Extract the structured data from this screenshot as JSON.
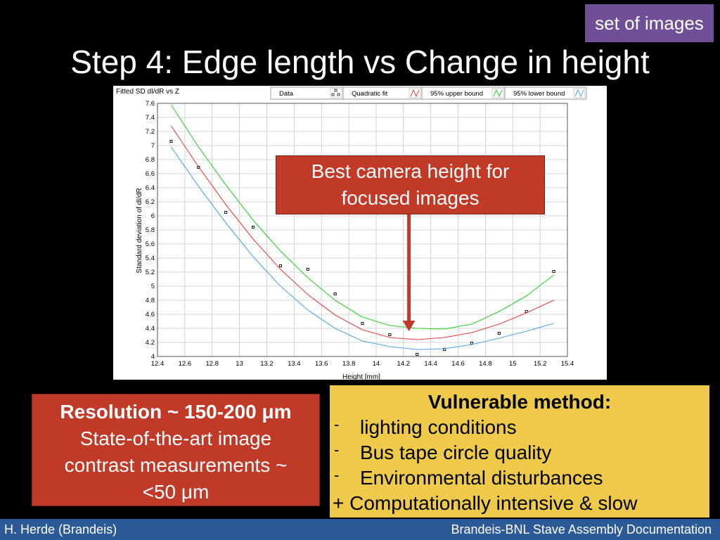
{
  "tag_label": "set of images",
  "slide_title": "Step 4: Edge length vs Change in height",
  "chart_data": {
    "type": "scatter",
    "title": "Fitted SD dI/dR vs Z",
    "xlabel": "Height [mm]",
    "ylabel": "Standard deviation of dI/dR",
    "xlim": [
      12.4,
      15.4
    ],
    "ylim": [
      4,
      7.6
    ],
    "x_ticks": [
      "12.4",
      "12.6",
      "12.8",
      "13",
      "13.2",
      "13.4",
      "13.6",
      "13.8",
      "14",
      "14.2",
      "14.4",
      "14.6",
      "14.8",
      "15",
      "15.2",
      "15.4"
    ],
    "y_ticks": [
      "4",
      "4.2",
      "4.4",
      "4.6",
      "4.8",
      "5",
      "5.2",
      "5.4",
      "5.6",
      "5.8",
      "6",
      "6.2",
      "6.4",
      "6.6",
      "6.8",
      "7",
      "7.2",
      "7.4",
      "7.6"
    ],
    "grid": true,
    "legend_position": "top",
    "series": [
      {
        "name": "Data",
        "kind": "points",
        "x": [
          12.5,
          12.7,
          12.9,
          13.1,
          13.3,
          13.5,
          13.7,
          13.9,
          14.1,
          14.3,
          14.5,
          14.7,
          14.9,
          15.1,
          15.3
        ],
        "y": [
          7.06,
          6.69,
          6.05,
          5.84,
          5.29,
          5.24,
          4.89,
          4.47,
          4.31,
          4.03,
          4.1,
          4.19,
          4.33,
          4.64,
          5.21
        ],
        "color": "#000000"
      },
      {
        "name": "Quadratic fit",
        "kind": "line",
        "x": [
          12.5,
          12.7,
          12.9,
          13.1,
          13.3,
          13.5,
          13.7,
          13.9,
          14.1,
          14.3,
          14.5,
          14.7,
          14.9,
          15.1,
          15.3
        ],
        "y": [
          7.28,
          6.7,
          6.16,
          5.67,
          5.24,
          4.88,
          4.59,
          4.38,
          4.27,
          4.24,
          4.27,
          4.34,
          4.46,
          4.62,
          4.8
        ],
        "color": "#e8413c"
      },
      {
        "name": "95% upper bound",
        "kind": "line",
        "x": [
          12.5,
          12.7,
          12.9,
          13.1,
          13.3,
          13.5,
          13.7,
          13.9,
          14.1,
          14.3,
          14.5,
          14.7,
          14.9,
          15.1,
          15.3
        ],
        "y": [
          7.58,
          6.98,
          6.44,
          5.94,
          5.5,
          5.12,
          4.8,
          4.56,
          4.44,
          4.4,
          4.39,
          4.46,
          4.64,
          4.86,
          5.16
        ],
        "color": "#2bd12b"
      },
      {
        "name": "95% lower bound",
        "kind": "line",
        "x": [
          12.5,
          12.7,
          12.9,
          13.1,
          13.3,
          13.5,
          13.7,
          13.9,
          14.1,
          14.3,
          14.5,
          14.7,
          14.9,
          15.1,
          15.3
        ],
        "y": [
          6.98,
          6.42,
          5.9,
          5.42,
          5.0,
          4.66,
          4.4,
          4.22,
          4.14,
          4.1,
          4.11,
          4.17,
          4.26,
          4.36,
          4.47
        ],
        "color": "#4aa8e8"
      }
    ],
    "annotation": {
      "lines": [
        "Best camera height for",
        "focused images"
      ],
      "arrow_x": 14.24,
      "arrow_y": 4.4
    }
  },
  "resolution_box": {
    "heading": "Resolution ~ 150-200 μm",
    "lines": [
      "State-of-the-art image",
      "contrast measurements ~",
      "<50 μm"
    ]
  },
  "vulnerable_box": {
    "heading": "Vulnerable method:",
    "bullet_marker": "-",
    "items": [
      "lighting conditions",
      "Bus tape circle quality",
      "Environmental disturbances"
    ],
    "plus_line": "+ Computationally intensive & slow"
  },
  "footer": {
    "left": "H. Herde (Brandeis)",
    "right": "Brandeis-BNL Stave Assembly Documentation"
  },
  "colors": {
    "background": "#000000",
    "tag_bg": "#6f4f96",
    "callout_bg": "#c13a28",
    "vulnerable_bg": "#eec94a",
    "footer_bg": "#2c5a98"
  }
}
